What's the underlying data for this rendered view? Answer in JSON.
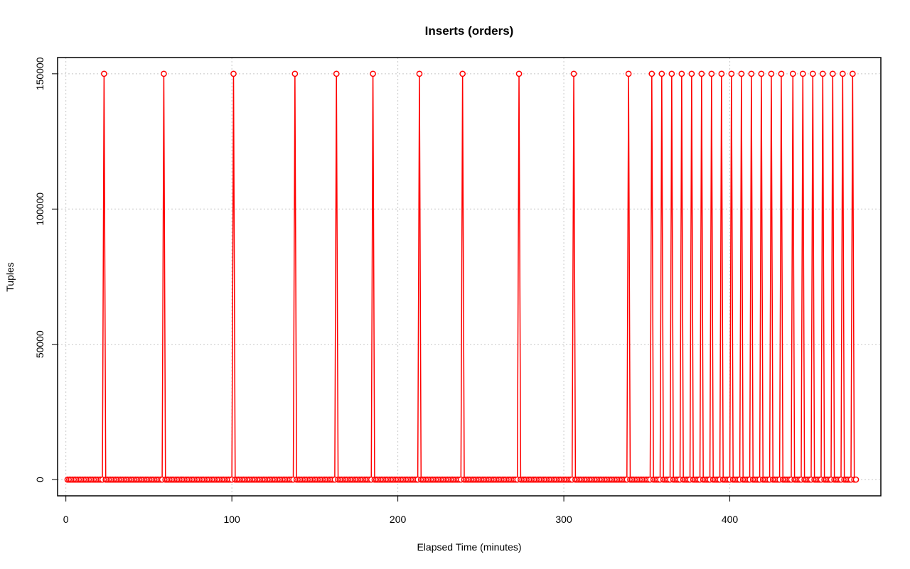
{
  "chart_data": {
    "type": "scatter",
    "title": "Inserts (orders)",
    "xlabel": "Elapsed Time (minutes)",
    "ylabel": "Tuples",
    "xlim": [
      -5,
      491
    ],
    "ylim": [
      -6000,
      156000
    ],
    "xticks": [
      0,
      100,
      200,
      300,
      400
    ],
    "yticks": [
      0,
      50000,
      100000,
      150000
    ],
    "grid": true,
    "line_color": "#ff0000",
    "point_style": "open-circle",
    "x_start": 1,
    "x_end": 476,
    "baseline_value": 0,
    "series": [
      {
        "spike_value": 150000,
        "spike_x": [
          23,
          59,
          101,
          138,
          163,
          185,
          213,
          239,
          273,
          306,
          339,
          353,
          359,
          365,
          371,
          377,
          383,
          389,
          395,
          401,
          407,
          413,
          419,
          425,
          431,
          438,
          444,
          450,
          456,
          462,
          468,
          474
        ]
      }
    ]
  }
}
